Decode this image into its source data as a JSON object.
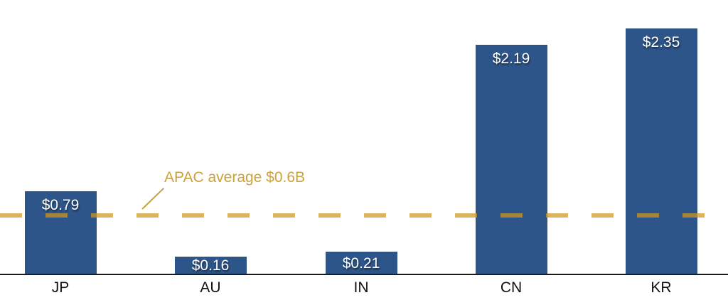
{
  "chart_data": {
    "type": "bar",
    "categories": [
      "JP",
      "AU",
      "IN",
      "CN",
      "KR"
    ],
    "values": [
      0.79,
      0.16,
      0.21,
      2.19,
      2.35
    ],
    "value_labels": [
      "$0.79",
      "$0.16",
      "$0.21",
      "$2.19",
      "$2.35"
    ],
    "units": "USD billions",
    "title": "",
    "xlabel": "",
    "ylabel": "",
    "ylim": [
      0,
      2.6
    ],
    "grid": false,
    "legend_position": "none",
    "average_line": {
      "label": "APAC average $0.6B",
      "value": 0.6,
      "style": "dashed"
    },
    "colors": {
      "bar": "#2D5589",
      "average_line": "#D0A43E",
      "annotation_text": "#CDA23D",
      "value_label_text": "#FFFFFF",
      "category_label_text": "#111111",
      "axis": "#1C1C1C",
      "background": "#FFFFFF"
    }
  }
}
